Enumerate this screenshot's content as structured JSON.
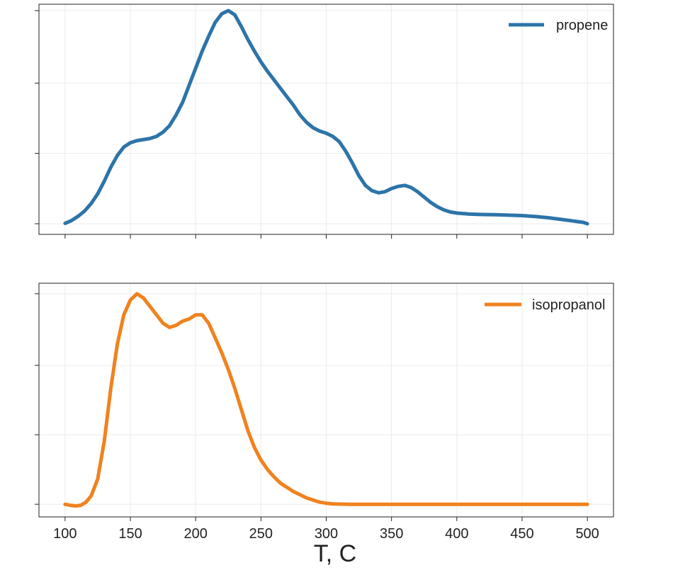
{
  "chart_data": {
    "type": "line",
    "shared_x": true,
    "xlabel": "T, C",
    "x_ticks": [
      100,
      150,
      200,
      250,
      300,
      350,
      400,
      450,
      500
    ],
    "xlim": [
      80,
      520
    ],
    "grid": true,
    "legend_position": "top-right",
    "panels": [
      {
        "series": [
          {
            "name": "propene",
            "color": "#2d74a8",
            "x": [
              100,
              105,
              110,
              115,
              120,
              125,
              130,
              135,
              140,
              145,
              150,
              155,
              160,
              165,
              170,
              175,
              180,
              185,
              190,
              195,
              200,
              205,
              210,
              215,
              220,
              225,
              230,
              235,
              240,
              245,
              250,
              255,
              260,
              265,
              270,
              275,
              280,
              285,
              290,
              295,
              300,
              305,
              310,
              315,
              320,
              325,
              330,
              335,
              340,
              345,
              350,
              355,
              360,
              365,
              370,
              375,
              380,
              385,
              390,
              395,
              400,
              410,
              420,
              430,
              440,
              450,
              460,
              470,
              480,
              490,
              497,
              500
            ],
            "y": [
              0.002,
              0.015,
              0.035,
              0.06,
              0.095,
              0.14,
              0.2,
              0.265,
              0.32,
              0.36,
              0.38,
              0.39,
              0.395,
              0.4,
              0.41,
              0.43,
              0.46,
              0.51,
              0.57,
              0.65,
              0.73,
              0.81,
              0.88,
              0.945,
              0.985,
              1.0,
              0.98,
              0.925,
              0.865,
              0.81,
              0.76,
              0.715,
              0.675,
              0.635,
              0.595,
              0.555,
              0.51,
              0.475,
              0.45,
              0.435,
              0.425,
              0.41,
              0.385,
              0.34,
              0.285,
              0.225,
              0.18,
              0.155,
              0.145,
              0.15,
              0.165,
              0.175,
              0.18,
              0.17,
              0.15,
              0.125,
              0.1,
              0.08,
              0.065,
              0.055,
              0.05,
              0.045,
              0.043,
              0.042,
              0.04,
              0.038,
              0.034,
              0.028,
              0.02,
              0.012,
              0.006,
              0.0
            ]
          }
        ]
      },
      {
        "series": [
          {
            "name": "isopropanol",
            "color": "#f0821e",
            "x": [
              100,
              104,
              108,
              112,
              116,
              120,
              125,
              130,
              135,
              140,
              145,
              150,
              155,
              160,
              165,
              170,
              175,
              180,
              185,
              190,
              195,
              200,
              205,
              210,
              215,
              220,
              225,
              230,
              235,
              240,
              245,
              250,
              255,
              260,
              265,
              270,
              275,
              280,
              285,
              290,
              295,
              300,
              305,
              310,
              320,
              350,
              400,
              450,
              500
            ],
            "y": [
              0.0,
              -0.005,
              -0.008,
              -0.005,
              0.01,
              0.04,
              0.12,
              0.3,
              0.55,
              0.76,
              0.9,
              0.97,
              1.0,
              0.98,
              0.94,
              0.9,
              0.86,
              0.84,
              0.85,
              0.87,
              0.88,
              0.9,
              0.9,
              0.86,
              0.79,
              0.72,
              0.64,
              0.55,
              0.45,
              0.35,
              0.27,
              0.21,
              0.165,
              0.13,
              0.1,
              0.08,
              0.06,
              0.045,
              0.03,
              0.02,
              0.01,
              0.005,
              0.002,
              0.001,
              0.0,
              0.0,
              0.0,
              0.0,
              0.0
            ]
          }
        ]
      }
    ]
  }
}
